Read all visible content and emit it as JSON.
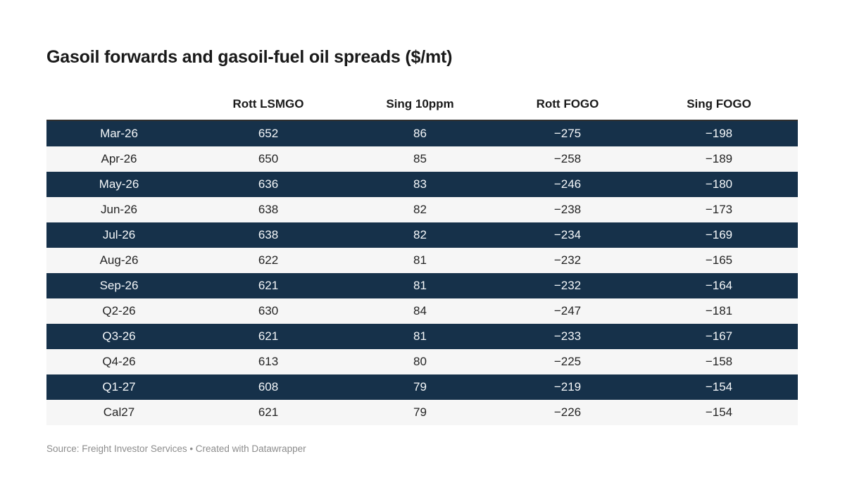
{
  "title": "Gasoil forwards and gasoil-fuel oil spreads ($/mt)",
  "table": {
    "columns": [
      "",
      "Rott LSMGO",
      "Sing 10ppm",
      "Rott FOGO",
      "Sing FOGO"
    ],
    "rows": [
      {
        "label": "Mar-26",
        "values": [
          "652",
          "86",
          "−275",
          "−198"
        ]
      },
      {
        "label": "Apr-26",
        "values": [
          "650",
          "85",
          "−258",
          "−189"
        ]
      },
      {
        "label": "May-26",
        "values": [
          "636",
          "83",
          "−246",
          "−180"
        ]
      },
      {
        "label": "Jun-26",
        "values": [
          "638",
          "82",
          "−238",
          "−173"
        ]
      },
      {
        "label": "Jul-26",
        "values": [
          "638",
          "82",
          "−234",
          "−169"
        ]
      },
      {
        "label": "Aug-26",
        "values": [
          "622",
          "81",
          "−232",
          "−165"
        ]
      },
      {
        "label": "Sep-26",
        "values": [
          "621",
          "81",
          "−232",
          "−164"
        ]
      },
      {
        "label": "Q2-26",
        "values": [
          "630",
          "84",
          "−247",
          "−181"
        ]
      },
      {
        "label": "Q3-26",
        "values": [
          "621",
          "81",
          "−233",
          "−167"
        ]
      },
      {
        "label": "Q4-26",
        "values": [
          "613",
          "80",
          "−225",
          "−158"
        ]
      },
      {
        "label": "Q1-27",
        "values": [
          "608",
          "79",
          "−219",
          "−154"
        ]
      },
      {
        "label": "Cal27",
        "values": [
          "621",
          "79",
          "−226",
          "−154"
        ]
      }
    ]
  },
  "footer": {
    "source": "Source: Freight Investor Services • Created with Datawrapper"
  },
  "colors": {
    "dark_row_bg": "#16314a",
    "dark_row_text": "#f5f8fa",
    "light_row_bg": "#f6f6f6",
    "light_row_text": "#242424",
    "table_top_border": "#2f2f2f",
    "title_text": "#191919",
    "footer_text": "#8c8c8c",
    "page_bg": "#ffffff"
  },
  "chart_data": {
    "type": "table",
    "title": "Gasoil forwards and gasoil-fuel oil spreads ($/mt)",
    "columns": [
      "",
      "Rott LSMGO",
      "Sing 10ppm",
      "Rott FOGO",
      "Sing FOGO"
    ],
    "rows": [
      [
        "Mar-26",
        652,
        86,
        -275,
        -198
      ],
      [
        "Apr-26",
        650,
        85,
        -258,
        -189
      ],
      [
        "May-26",
        636,
        83,
        -246,
        -180
      ],
      [
        "Jun-26",
        638,
        82,
        -238,
        -173
      ],
      [
        "Jul-26",
        638,
        82,
        -234,
        -169
      ],
      [
        "Aug-26",
        622,
        81,
        -232,
        -165
      ],
      [
        "Sep-26",
        621,
        81,
        -232,
        -164
      ],
      [
        "Q2-26",
        630,
        84,
        -247,
        -181
      ],
      [
        "Q3-26",
        621,
        81,
        -233,
        -167
      ],
      [
        "Q4-26",
        613,
        80,
        -225,
        -158
      ],
      [
        "Q1-27",
        608,
        79,
        -219,
        -154
      ],
      [
        "Cal27",
        621,
        79,
        -226,
        -154
      ]
    ],
    "row_striping": "odd rows dark navy starting with first row",
    "source": "Source: Freight Investor Services • Created with Datawrapper"
  }
}
